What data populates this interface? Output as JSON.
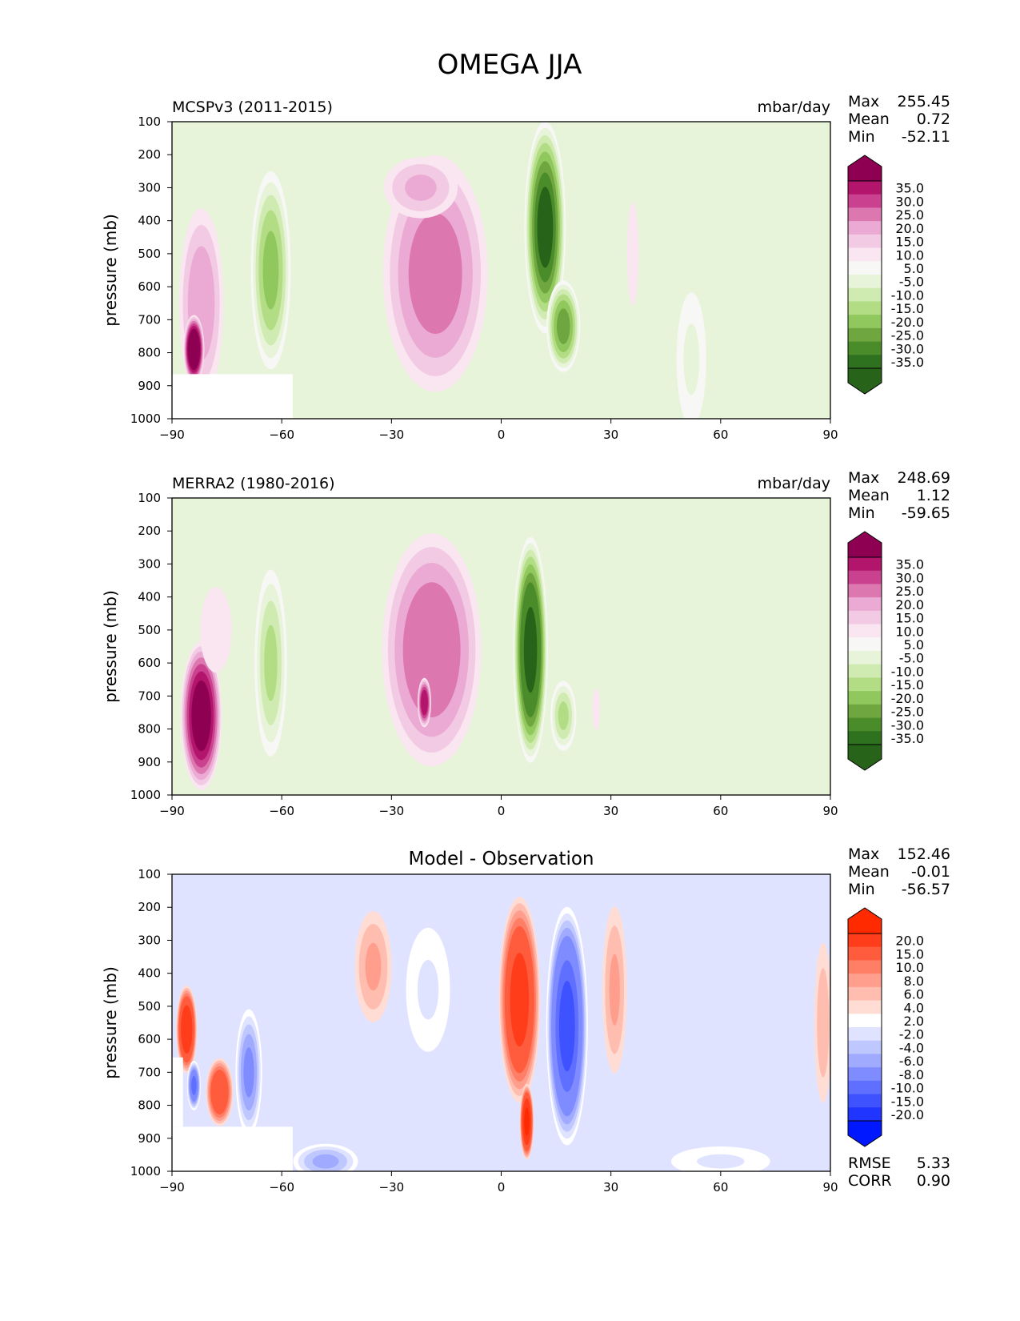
{
  "figure": {
    "title": "OMEGA JJA"
  },
  "chart_data": [
    {
      "type": "heatmap",
      "title_left": "MCSPv3 (2011-2015)",
      "title_center": "",
      "units": "mbar/day",
      "ylabel": "pressure (mb)",
      "xlabel": "",
      "xlim": [
        -90,
        90
      ],
      "ylim": [
        1000,
        100
      ],
      "xticks": [
        -90,
        -60,
        -30,
        0,
        30,
        60,
        90
      ],
      "xtick_labels": [
        "−90",
        "−60",
        "−30",
        "0",
        "30",
        "60",
        "90"
      ],
      "yticks": [
        100,
        200,
        300,
        400,
        500,
        600,
        700,
        800,
        900,
        1000
      ],
      "stats": [
        {
          "label": "Max",
          "value": "255.45"
        },
        {
          "label": "Mean",
          "value": "0.72"
        },
        {
          "label": "Min",
          "value": "-52.11"
        }
      ],
      "extra_stats": [],
      "colorbar": {
        "labels": [
          "35.0",
          "30.0",
          "25.0",
          "20.0",
          "15.0",
          "10.0",
          "5.0",
          "-5.0",
          "-10.0",
          "-15.0",
          "-20.0",
          "-25.0",
          "-30.0",
          "-35.0"
        ],
        "colors": [
          "#8e0152",
          "#b2156b",
          "#c9418f",
          "#dd77b0",
          "#ebaad3",
          "#f3cae3",
          "#f9e6f1",
          "#f7f7f5",
          "#e7f4d9",
          "#d0ebb1",
          "#b3dd85",
          "#91c85e",
          "#6fa63f",
          "#4a8c2a",
          "#2e711f",
          "#276419"
        ]
      },
      "features": [
        {
          "x": -18,
          "p": 560,
          "rx": 16,
          "rp": 400,
          "v": 22
        },
        {
          "x": -22,
          "p": 300,
          "rx": 12,
          "rp": 110,
          "v": 15
        },
        {
          "x": 12,
          "p": 420,
          "rx": 6,
          "rp": 340,
          "v": -40
        },
        {
          "x": 17,
          "p": 720,
          "rx": 5,
          "rp": 150,
          "v": -30
        },
        {
          "x": -63,
          "p": 550,
          "rx": 6,
          "rp": 330,
          "v": -25
        },
        {
          "x": -82,
          "p": 650,
          "rx": 7,
          "rp": 330,
          "v": 18
        },
        {
          "x": -84,
          "p": 790,
          "rx": 3,
          "rp": 110,
          "v": 45
        },
        {
          "x": 52,
          "p": 820,
          "rx": 6,
          "rp": 300,
          "v": -8
        },
        {
          "x": 36,
          "p": 500,
          "rx": 3,
          "rp": 300,
          "v": 6
        }
      ],
      "masked": [
        {
          "x0": -90,
          "x1": -57,
          "p0": 865,
          "p1": 1000
        }
      ]
    },
    {
      "type": "heatmap",
      "title_left": "MERRA2 (1980-2016)",
      "title_center": "",
      "units": "mbar/day",
      "ylabel": "pressure (mb)",
      "xlabel": "",
      "xlim": [
        -90,
        90
      ],
      "ylim": [
        1000,
        100
      ],
      "xticks": [
        -90,
        -60,
        -30,
        0,
        30,
        60,
        90
      ],
      "xtick_labels": [
        "−90",
        "−60",
        "−30",
        "0",
        "30",
        "60",
        "90"
      ],
      "yticks": [
        100,
        200,
        300,
        400,
        500,
        600,
        700,
        800,
        900,
        1000
      ],
      "stats": [
        {
          "label": "Max",
          "value": "248.69"
        },
        {
          "label": "Mean",
          "value": "1.12"
        },
        {
          "label": "Min",
          "value": "-59.65"
        }
      ],
      "extra_stats": [],
      "colorbar": {
        "labels": [
          "35.0",
          "30.0",
          "25.0",
          "20.0",
          "15.0",
          "10.0",
          "5.0",
          "-5.0",
          "-10.0",
          "-15.0",
          "-20.0",
          "-25.0",
          "-30.0",
          "-35.0"
        ],
        "colors": [
          "#8e0152",
          "#b2156b",
          "#c9418f",
          "#dd77b0",
          "#ebaad3",
          "#f3cae3",
          "#f9e6f1",
          "#f7f7f5",
          "#e7f4d9",
          "#d0ebb1",
          "#b3dd85",
          "#91c85e",
          "#6fa63f",
          "#4a8c2a",
          "#2e711f",
          "#276419"
        ]
      },
      "features": [
        {
          "x": -19,
          "p": 560,
          "rx": 15,
          "rp": 390,
          "v": 24
        },
        {
          "x": 8,
          "p": 560,
          "rx": 5,
          "rp": 360,
          "v": -45
        },
        {
          "x": 17,
          "p": 760,
          "rx": 4,
          "rp": 120,
          "v": -20
        },
        {
          "x": -63,
          "p": 600,
          "rx": 5,
          "rp": 320,
          "v": -20
        },
        {
          "x": -82,
          "p": 760,
          "rx": 6,
          "rp": 240,
          "v": 38
        },
        {
          "x": -78,
          "p": 500,
          "rx": 6,
          "rp": 180,
          "v": 9
        },
        {
          "x": -21,
          "p": 720,
          "rx": 2,
          "rp": 80,
          "v": 34
        },
        {
          "x": 26,
          "p": 740,
          "rx": 2,
          "rp": 120,
          "v": 6
        }
      ],
      "masked": []
    },
    {
      "type": "heatmap",
      "title_left": "",
      "title_center": "Model - Observation",
      "units": "",
      "ylabel": "pressure (mb)",
      "xlabel": "",
      "xlim": [
        -90,
        90
      ],
      "ylim": [
        1000,
        100
      ],
      "xticks": [
        -90,
        -60,
        -30,
        0,
        30,
        60,
        90
      ],
      "xtick_labels": [
        "−90",
        "−60",
        "−30",
        "0",
        "30",
        "60",
        "90"
      ],
      "yticks": [
        100,
        200,
        300,
        400,
        500,
        600,
        700,
        800,
        900,
        1000
      ],
      "stats": [
        {
          "label": "Max",
          "value": "152.46"
        },
        {
          "label": "Mean",
          "value": "-0.01"
        },
        {
          "label": "Min",
          "value": "-56.57"
        }
      ],
      "extra_stats": [
        {
          "label": "RMSE",
          "value": "5.33"
        },
        {
          "label": "CORR",
          "value": "0.90"
        }
      ],
      "colorbar": {
        "labels": [
          "20.0",
          "15.0",
          "10.0",
          "8.0",
          "6.0",
          "4.0",
          "2.0",
          "-2.0",
          "-4.0",
          "-6.0",
          "-8.0",
          "-10.0",
          "-15.0",
          "-20.0"
        ],
        "colors": [
          "#ff2a00",
          "#ff3d1a",
          "#ff5c3d",
          "#ff7f66",
          "#ff9e8c",
          "#ffbdb0",
          "#ffdcd4",
          "#ffffff",
          "#dfe3ff",
          "#bfc7ff",
          "#a0aaff",
          "#7f8cff",
          "#5f6fff",
          "#3f52ff",
          "#2035ff",
          "#0018ff"
        ]
      },
      "features": [
        {
          "x": 5,
          "p": 480,
          "rx": 6,
          "rp": 330,
          "v": 16
        },
        {
          "x": 7,
          "p": 850,
          "rx": 2,
          "rp": 120,
          "v": 20
        },
        {
          "x": 18,
          "p": 560,
          "rx": 6,
          "rp": 380,
          "v": -18
        },
        {
          "x": -35,
          "p": 380,
          "rx": 6,
          "rp": 200,
          "v": 6
        },
        {
          "x": -20,
          "p": 450,
          "rx": 8,
          "rp": 250,
          "v": -4
        },
        {
          "x": 31,
          "p": 450,
          "rx": 4,
          "rp": 300,
          "v": 6
        },
        {
          "x": -86,
          "p": 570,
          "rx": 3,
          "rp": 140,
          "v": 18
        },
        {
          "x": -77,
          "p": 760,
          "rx": 4,
          "rp": 110,
          "v": 14
        },
        {
          "x": -84,
          "p": 740,
          "rx": 2,
          "rp": 80,
          "v": -14
        },
        {
          "x": -69,
          "p": 700,
          "rx": 4,
          "rp": 210,
          "v": -10
        },
        {
          "x": -48,
          "p": 970,
          "rx": 10,
          "rp": 60,
          "v": -8
        },
        {
          "x": 60,
          "p": 970,
          "rx": 18,
          "rp": 60,
          "v": -4
        },
        {
          "x": 88,
          "p": 550,
          "rx": 3,
          "rp": 300,
          "v": 5
        }
      ],
      "masked": [
        {
          "x0": -90,
          "x1": -57,
          "p0": 865,
          "p1": 1000
        },
        {
          "x0": -90,
          "x1": -87,
          "p0": 655,
          "p1": 865
        }
      ]
    }
  ]
}
